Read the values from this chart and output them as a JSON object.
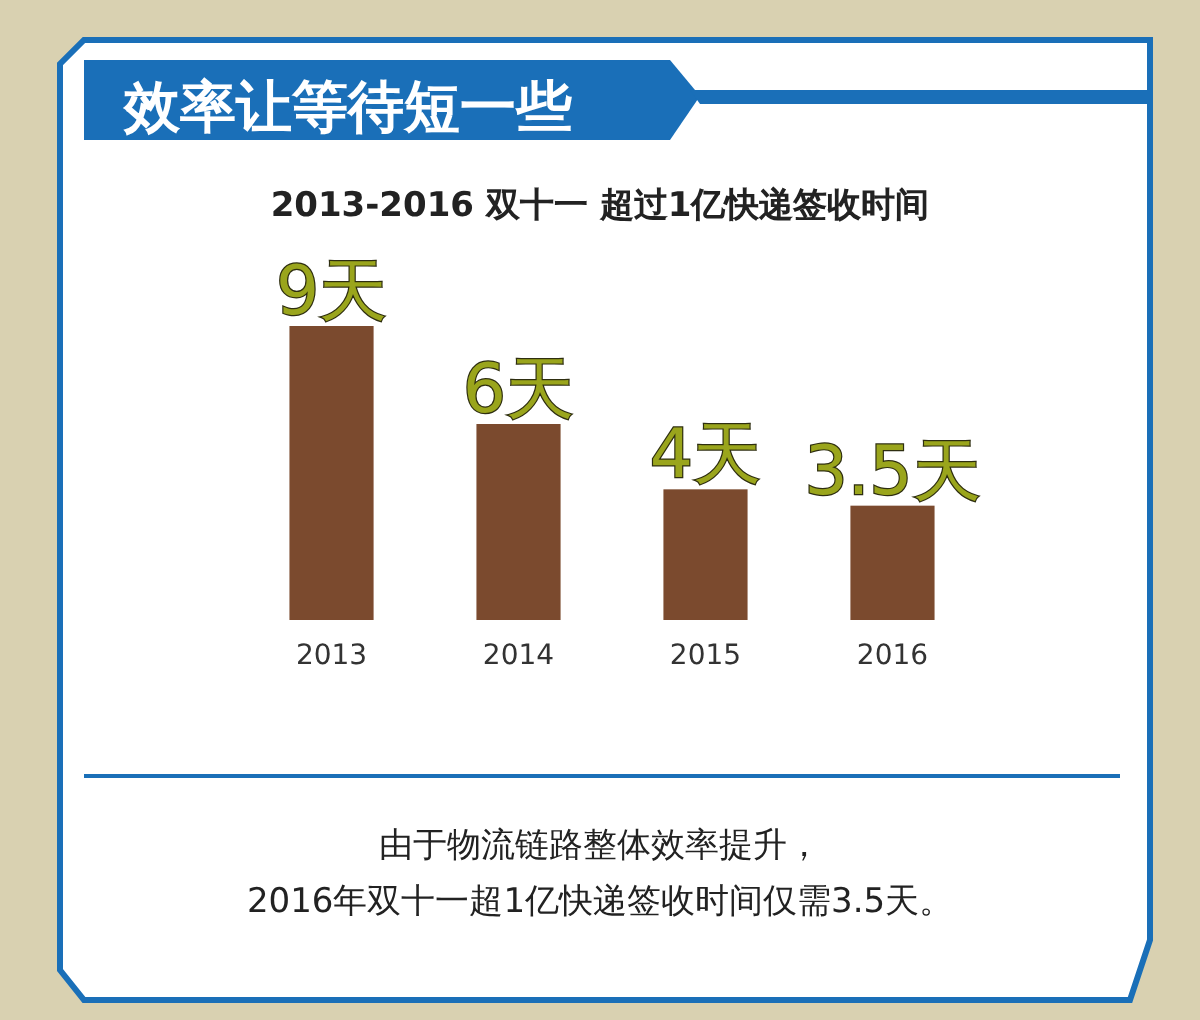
{
  "chart_data": {
    "type": "bar",
    "title": "效率让等待短一些",
    "subtitle": "2013-2016 双十一 超过1亿快递签收时间",
    "categories": [
      "2013",
      "2014",
      "2015",
      "2016"
    ],
    "values": [
      9,
      6,
      4,
      3.5
    ],
    "color": "#7b4a2e",
    "value_labels": [
      "9天",
      "6天",
      "4天",
      "3.5天"
    ],
    "annotations": [
      "由于物流链路整体效率提升，",
      "2016年双十一超1亿快递签收时间仅需3.5天。"
    ]
  }
}
